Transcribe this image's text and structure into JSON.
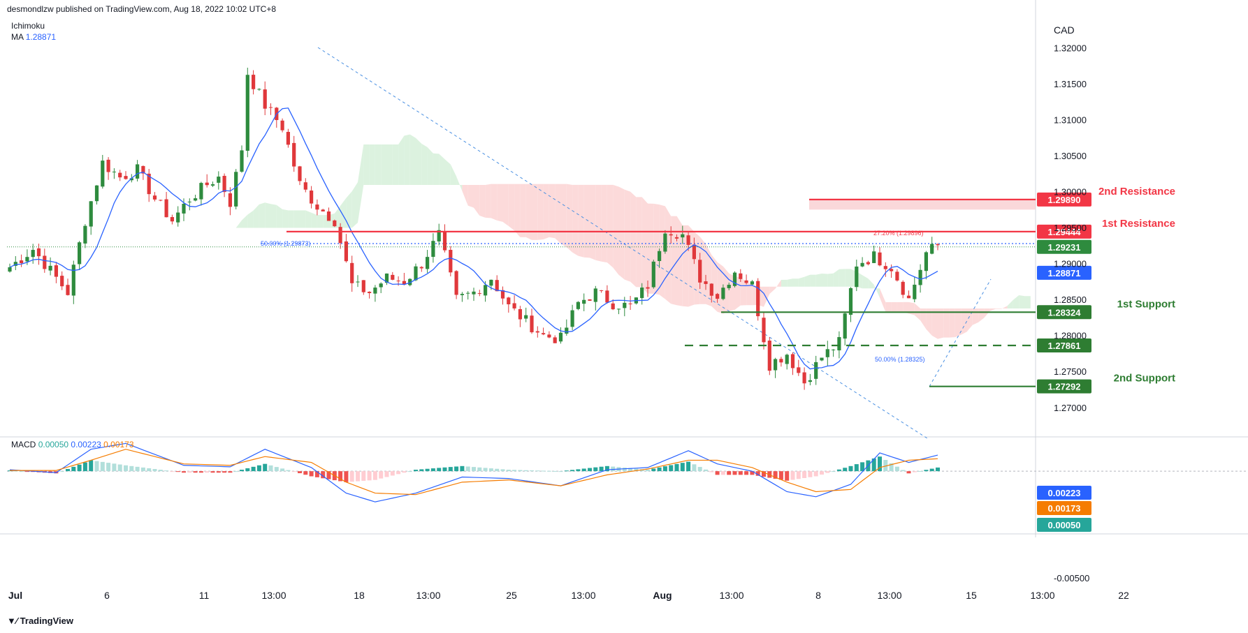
{
  "header": {
    "published": "desmondlzw published on TradingView.com, Aug 18, 2022 10:02 UTC+8"
  },
  "legend": {
    "ichimoku": "Ichimoku",
    "ma_label": "MA",
    "ma_value": "1.28871",
    "macd_label": "MACD",
    "macd_hist": "0.00050",
    "macd_line": "0.00223",
    "macd_signal": "0.00173"
  },
  "footer": {
    "brand": "TradingView"
  },
  "colors": {
    "up": "#26a69a",
    "candle_up": "#2e8b3e",
    "candle_down": "#e0383b",
    "ma": "#2962ff",
    "signal": "#f57c00",
    "resistance": "#f23645",
    "support": "#2e7d32",
    "cloud_bear": "#fbd3d4",
    "cloud_bull": "#d6f0d9",
    "hist_up_strong": "#26a69a",
    "hist_up_weak": "#b2dfdb",
    "hist_down_strong": "#ef5350",
    "hist_down_weak": "#ffcdd2"
  },
  "chart_data": {
    "type": "candlestick",
    "symbol_axis_label": "CAD",
    "ylim": [
      1.266,
      1.3245
    ],
    "y_ticks": [
      "1.32000",
      "1.31500",
      "1.31000",
      "1.30500",
      "1.30000",
      "1.29500",
      "1.29000",
      "1.28500",
      "1.28000",
      "1.27500",
      "1.27000"
    ],
    "x_ticks": [
      {
        "label": "Jul",
        "bold": true
      },
      {
        "label": "6"
      },
      {
        "label": "11"
      },
      {
        "label": "13:00"
      },
      {
        "label": "18"
      },
      {
        "label": "13:00"
      },
      {
        "label": "25"
      },
      {
        "label": "13:00"
      },
      {
        "label": "Aug",
        "bold": true
      },
      {
        "label": "13:00"
      },
      {
        "label": "8"
      },
      {
        "label": "13:00"
      },
      {
        "label": "15"
      },
      {
        "label": "13:00"
      },
      {
        "label": "22"
      }
    ],
    "levels": [
      {
        "name": "2nd Resistance",
        "value": 1.2989,
        "label": "1.29890",
        "kind": "resistance"
      },
      {
        "name": "1st Resistance",
        "value": 1.29444,
        "label": "1.29444",
        "kind": "resistance"
      },
      {
        "name": "1st Support",
        "value": 1.28324,
        "label": "1.28324",
        "kind": "support"
      },
      {
        "name": "",
        "value": 1.27861,
        "label": "1.27861",
        "kind": "support-dashed"
      },
      {
        "name": "2nd Support",
        "value": 1.27292,
        "label": "1.27292",
        "kind": "support"
      }
    ],
    "current_price": {
      "value": 1.29231,
      "label": "1.29231"
    },
    "ma_price": {
      "value": 1.28871,
      "label": "1.28871"
    },
    "fib_labels": [
      "50.00% (1.29873)",
      "27.20% (1.29896)",
      "50.00% (1.28325)"
    ],
    "anchors": [
      {
        "x": 0,
        "v": 1.2895
      },
      {
        "x": 4,
        "v": 1.292
      },
      {
        "x": 7,
        "v": 1.289
      },
      {
        "x": 10,
        "v": 1.286
      },
      {
        "x": 13,
        "v": 1.296
      },
      {
        "x": 16,
        "v": 1.304
      },
      {
        "x": 19,
        "v": 1.302
      },
      {
        "x": 22,
        "v": 1.303
      },
      {
        "x": 25,
        "v": 1.299
      },
      {
        "x": 28,
        "v": 1.296
      },
      {
        "x": 31,
        "v": 1.299
      },
      {
        "x": 34,
        "v": 1.301
      },
      {
        "x": 36,
        "v": 1.302
      },
      {
        "x": 38,
        "v": 1.2985
      },
      {
        "x": 40,
        "v": 1.306
      },
      {
        "x": 41,
        "v": 1.3165
      },
      {
        "x": 44,
        "v": 1.312
      },
      {
        "x": 47,
        "v": 1.309
      },
      {
        "x": 50,
        "v": 1.301
      },
      {
        "x": 53,
        "v": 1.298
      },
      {
        "x": 56,
        "v": 1.296
      },
      {
        "x": 59,
        "v": 1.287
      },
      {
        "x": 62,
        "v": 1.286
      },
      {
        "x": 65,
        "v": 1.288
      },
      {
        "x": 68,
        "v": 1.2875
      },
      {
        "x": 71,
        "v": 1.29
      },
      {
        "x": 74,
        "v": 1.294
      },
      {
        "x": 77,
        "v": 1.285
      },
      {
        "x": 80,
        "v": 1.286
      },
      {
        "x": 83,
        "v": 1.288
      },
      {
        "x": 86,
        "v": 1.284
      },
      {
        "x": 89,
        "v": 1.282
      },
      {
        "x": 92,
        "v": 1.28
      },
      {
        "x": 95,
        "v": 1.2795
      },
      {
        "x": 98,
        "v": 1.2845
      },
      {
        "x": 101,
        "v": 1.286
      },
      {
        "x": 104,
        "v": 1.2845
      },
      {
        "x": 107,
        "v": 1.284
      },
      {
        "x": 110,
        "v": 1.287
      },
      {
        "x": 113,
        "v": 1.295
      },
      {
        "x": 116,
        "v": 1.294
      },
      {
        "x": 119,
        "v": 1.288
      },
      {
        "x": 122,
        "v": 1.2855
      },
      {
        "x": 125,
        "v": 1.289
      },
      {
        "x": 128,
        "v": 1.287
      },
      {
        "x": 131,
        "v": 1.276
      },
      {
        "x": 134,
        "v": 1.2775
      },
      {
        "x": 137,
        "v": 1.2735
      },
      {
        "x": 140,
        "v": 1.277
      },
      {
        "x": 143,
        "v": 1.279
      },
      {
        "x": 146,
        "v": 1.29
      },
      {
        "x": 149,
        "v": 1.291
      },
      {
        "x": 152,
        "v": 1.2895
      },
      {
        "x": 155,
        "v": 1.285
      },
      {
        "x": 158,
        "v": 1.2915
      },
      {
        "x": 160,
        "v": 1.2925
      }
    ],
    "macd_anchors": [
      {
        "x": 0,
        "m": 0.0002,
        "s": 0.0001
      },
      {
        "x": 8,
        "m": -0.0002,
        "s": 0.0001
      },
      {
        "x": 14,
        "m": 0.003,
        "s": 0.0015
      },
      {
        "x": 20,
        "m": 0.0038,
        "s": 0.003
      },
      {
        "x": 30,
        "m": 0.0008,
        "s": 0.001
      },
      {
        "x": 38,
        "m": 0.0006,
        "s": 0.0008
      },
      {
        "x": 44,
        "m": 0.003,
        "s": 0.002
      },
      {
        "x": 52,
        "m": 0.0005,
        "s": 0.0012
      },
      {
        "x": 58,
        "m": -0.003,
        "s": -0.0015
      },
      {
        "x": 63,
        "m": -0.0042,
        "s": -0.003
      },
      {
        "x": 70,
        "m": -0.003,
        "s": -0.0032
      },
      {
        "x": 78,
        "m": -0.0008,
        "s": -0.0015
      },
      {
        "x": 86,
        "m": -0.001,
        "s": -0.0012
      },
      {
        "x": 95,
        "m": -0.002,
        "s": -0.002
      },
      {
        "x": 103,
        "m": 0.0002,
        "s": -0.0005
      },
      {
        "x": 110,
        "m": 0.0005,
        "s": 0.0003
      },
      {
        "x": 117,
        "m": 0.0028,
        "s": 0.0015
      },
      {
        "x": 122,
        "m": 0.001,
        "s": 0.0015
      },
      {
        "x": 128,
        "m": 0.0,
        "s": 0.0005
      },
      {
        "x": 134,
        "m": -0.0028,
        "s": -0.0015
      },
      {
        "x": 139,
        "m": -0.0035,
        "s": -0.0028
      },
      {
        "x": 145,
        "m": -0.0018,
        "s": -0.0025
      },
      {
        "x": 150,
        "m": 0.0025,
        "s": 0.0005
      },
      {
        "x": 155,
        "m": 0.0012,
        "s": 0.0015
      },
      {
        "x": 160,
        "m": 0.0022,
        "s": 0.0017
      }
    ],
    "macd_ylim": [
      -0.006,
      0.0045
    ],
    "macd_ticks": [
      "-0.00500"
    ],
    "macd_badges": [
      {
        "label": "0.00223",
        "value": 0.00223,
        "color": "#2962ff"
      },
      {
        "label": "0.00173",
        "value": 0.00173,
        "color": "#f57c00"
      },
      {
        "label": "0.00050",
        "value": 0.0005,
        "color": "#26a69a"
      }
    ]
  }
}
